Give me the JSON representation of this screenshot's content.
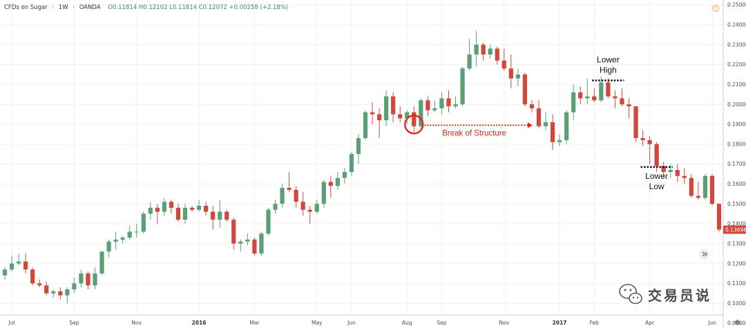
{
  "header": {
    "symbol": "CFDs on Sugar",
    "interval": "1W",
    "source": "OANDA",
    "ohlc": "O0.11814  H0.12102  L0.11814  C0.12072  +0.00258 (+2.18%)"
  },
  "price_tag": "0.13698",
  "watermark": "交易员说",
  "colors": {
    "up": "#5b9f77",
    "down": "#d0473c",
    "grid": "#eef0f3",
    "annotation": "#e3241b"
  },
  "icons": [
    "alert-icon",
    "gear-icon",
    "scroll-right-icon",
    "wechat-logo-icon"
  ],
  "chart_data": {
    "type": "candlestick",
    "title": "",
    "xlabel": "",
    "ylabel": "",
    "ylim": [
      0.09,
      0.25
    ],
    "y_ticks": [
      "0.25000",
      "0.24000",
      "0.23000",
      "0.22000",
      "0.21000",
      "0.20000",
      "0.19000",
      "0.18000",
      "0.17000",
      "0.16000",
      "0.15000",
      "0.14000",
      "0.13000",
      "0.12000",
      "0.11000",
      "0.10000",
      "0.09000"
    ],
    "x_ticks": [
      {
        "label": "Jul",
        "i": 1,
        "bold": false
      },
      {
        "label": "Sep",
        "i": 10,
        "bold": false
      },
      {
        "label": "Nov",
        "i": 19,
        "bold": false
      },
      {
        "label": "2016",
        "i": 28,
        "bold": true
      },
      {
        "label": "Mar",
        "i": 36,
        "bold": false
      },
      {
        "label": "May",
        "i": 45,
        "bold": false
      },
      {
        "label": "Jun",
        "i": 50,
        "bold": false
      },
      {
        "label": "Aug",
        "i": 58,
        "bold": false
      },
      {
        "label": "Sep",
        "i": 63,
        "bold": false
      },
      {
        "label": "Nov",
        "i": 72,
        "bold": false
      },
      {
        "label": "2017",
        "i": 80,
        "bold": true
      },
      {
        "label": "Feb",
        "i": 85,
        "bold": false
      },
      {
        "label": "Apr",
        "i": 93,
        "bold": false
      },
      {
        "label": "Jun",
        "i": 102,
        "bold": false
      }
    ],
    "candles": [
      {
        "o": 0.114,
        "h": 0.118,
        "l": 0.112,
        "c": 0.117
      },
      {
        "o": 0.117,
        "h": 0.124,
        "l": 0.116,
        "c": 0.12
      },
      {
        "o": 0.12,
        "h": 0.125,
        "l": 0.119,
        "c": 0.121
      },
      {
        "o": 0.121,
        "h": 0.125,
        "l": 0.115,
        "c": 0.117
      },
      {
        "o": 0.117,
        "h": 0.118,
        "l": 0.109,
        "c": 0.11
      },
      {
        "o": 0.11,
        "h": 0.112,
        "l": 0.108,
        "c": 0.109
      },
      {
        "o": 0.109,
        "h": 0.111,
        "l": 0.104,
        "c": 0.105
      },
      {
        "o": 0.105,
        "h": 0.107,
        "l": 0.103,
        "c": 0.106
      },
      {
        "o": 0.106,
        "h": 0.108,
        "l": 0.102,
        "c": 0.104
      },
      {
        "o": 0.104,
        "h": 0.108,
        "l": 0.1,
        "c": 0.107
      },
      {
        "o": 0.107,
        "h": 0.113,
        "l": 0.105,
        "c": 0.11
      },
      {
        "o": 0.11,
        "h": 0.117,
        "l": 0.108,
        "c": 0.115
      },
      {
        "o": 0.115,
        "h": 0.116,
        "l": 0.107,
        "c": 0.109
      },
      {
        "o": 0.109,
        "h": 0.118,
        "l": 0.107,
        "c": 0.115
      },
      {
        "o": 0.115,
        "h": 0.126,
        "l": 0.114,
        "c": 0.126
      },
      {
        "o": 0.126,
        "h": 0.132,
        "l": 0.123,
        "c": 0.131
      },
      {
        "o": 0.131,
        "h": 0.136,
        "l": 0.127,
        "c": 0.132
      },
      {
        "o": 0.132,
        "h": 0.134,
        "l": 0.13,
        "c": 0.133
      },
      {
        "o": 0.133,
        "h": 0.139,
        "l": 0.132,
        "c": 0.136
      },
      {
        "o": 0.136,
        "h": 0.14,
        "l": 0.133,
        "c": 0.136
      },
      {
        "o": 0.136,
        "h": 0.146,
        "l": 0.135,
        "c": 0.145
      },
      {
        "o": 0.145,
        "h": 0.151,
        "l": 0.142,
        "c": 0.148
      },
      {
        "o": 0.148,
        "h": 0.15,
        "l": 0.14,
        "c": 0.146
      },
      {
        "o": 0.146,
        "h": 0.153,
        "l": 0.144,
        "c": 0.151
      },
      {
        "o": 0.151,
        "h": 0.152,
        "l": 0.145,
        "c": 0.148
      },
      {
        "o": 0.148,
        "h": 0.15,
        "l": 0.141,
        "c": 0.142
      },
      {
        "o": 0.142,
        "h": 0.15,
        "l": 0.14,
        "c": 0.148
      },
      {
        "o": 0.148,
        "h": 0.149,
        "l": 0.146,
        "c": 0.147
      },
      {
        "o": 0.147,
        "h": 0.152,
        "l": 0.146,
        "c": 0.149
      },
      {
        "o": 0.149,
        "h": 0.151,
        "l": 0.144,
        "c": 0.146
      },
      {
        "o": 0.146,
        "h": 0.149,
        "l": 0.137,
        "c": 0.142
      },
      {
        "o": 0.142,
        "h": 0.152,
        "l": 0.138,
        "c": 0.146
      },
      {
        "o": 0.146,
        "h": 0.147,
        "l": 0.141,
        "c": 0.142
      },
      {
        "o": 0.142,
        "h": 0.143,
        "l": 0.127,
        "c": 0.13
      },
      {
        "o": 0.13,
        "h": 0.132,
        "l": 0.126,
        "c": 0.131
      },
      {
        "o": 0.131,
        "h": 0.135,
        "l": 0.129,
        "c": 0.132
      },
      {
        "o": 0.132,
        "h": 0.133,
        "l": 0.124,
        "c": 0.125
      },
      {
        "o": 0.125,
        "h": 0.136,
        "l": 0.124,
        "c": 0.135
      },
      {
        "o": 0.135,
        "h": 0.148,
        "l": 0.134,
        "c": 0.147
      },
      {
        "o": 0.147,
        "h": 0.152,
        "l": 0.145,
        "c": 0.15
      },
      {
        "o": 0.15,
        "h": 0.16,
        "l": 0.148,
        "c": 0.158
      },
      {
        "o": 0.158,
        "h": 0.166,
        "l": 0.156,
        "c": 0.157
      },
      {
        "o": 0.157,
        "h": 0.159,
        "l": 0.148,
        "c": 0.151
      },
      {
        "o": 0.151,
        "h": 0.156,
        "l": 0.144,
        "c": 0.147
      },
      {
        "o": 0.147,
        "h": 0.149,
        "l": 0.14,
        "c": 0.146
      },
      {
        "o": 0.146,
        "h": 0.152,
        "l": 0.145,
        "c": 0.15
      },
      {
        "o": 0.15,
        "h": 0.162,
        "l": 0.148,
        "c": 0.161
      },
      {
        "o": 0.161,
        "h": 0.164,
        "l": 0.153,
        "c": 0.159
      },
      {
        "o": 0.159,
        "h": 0.166,
        "l": 0.157,
        "c": 0.163
      },
      {
        "o": 0.163,
        "h": 0.168,
        "l": 0.16,
        "c": 0.166
      },
      {
        "o": 0.166,
        "h": 0.176,
        "l": 0.164,
        "c": 0.175
      },
      {
        "o": 0.175,
        "h": 0.185,
        "l": 0.17,
        "c": 0.183
      },
      {
        "o": 0.183,
        "h": 0.197,
        "l": 0.182,
        "c": 0.196
      },
      {
        "o": 0.196,
        "h": 0.201,
        "l": 0.19,
        "c": 0.195
      },
      {
        "o": 0.195,
        "h": 0.198,
        "l": 0.183,
        "c": 0.192
      },
      {
        "o": 0.192,
        "h": 0.207,
        "l": 0.189,
        "c": 0.204
      },
      {
        "o": 0.204,
        "h": 0.206,
        "l": 0.191,
        "c": 0.195
      },
      {
        "o": 0.195,
        "h": 0.199,
        "l": 0.191,
        "c": 0.193
      },
      {
        "o": 0.193,
        "h": 0.197,
        "l": 0.19,
        "c": 0.196
      },
      {
        "o": 0.196,
        "h": 0.199,
        "l": 0.186,
        "c": 0.189
      },
      {
        "o": 0.189,
        "h": 0.203,
        "l": 0.187,
        "c": 0.202
      },
      {
        "o": 0.202,
        "h": 0.204,
        "l": 0.194,
        "c": 0.197
      },
      {
        "o": 0.197,
        "h": 0.202,
        "l": 0.196,
        "c": 0.198
      },
      {
        "o": 0.198,
        "h": 0.206,
        "l": 0.195,
        "c": 0.203
      },
      {
        "o": 0.203,
        "h": 0.207,
        "l": 0.196,
        "c": 0.199
      },
      {
        "o": 0.199,
        "h": 0.204,
        "l": 0.198,
        "c": 0.2
      },
      {
        "o": 0.2,
        "h": 0.219,
        "l": 0.199,
        "c": 0.218
      },
      {
        "o": 0.218,
        "h": 0.233,
        "l": 0.217,
        "c": 0.225
      },
      {
        "o": 0.225,
        "h": 0.237,
        "l": 0.219,
        "c": 0.23
      },
      {
        "o": 0.23,
        "h": 0.231,
        "l": 0.222,
        "c": 0.225
      },
      {
        "o": 0.225,
        "h": 0.23,
        "l": 0.223,
        "c": 0.228
      },
      {
        "o": 0.228,
        "h": 0.229,
        "l": 0.22,
        "c": 0.222
      },
      {
        "o": 0.222,
        "h": 0.228,
        "l": 0.217,
        "c": 0.218
      },
      {
        "o": 0.218,
        "h": 0.225,
        "l": 0.208,
        "c": 0.213
      },
      {
        "o": 0.213,
        "h": 0.218,
        "l": 0.209,
        "c": 0.215
      },
      {
        "o": 0.215,
        "h": 0.216,
        "l": 0.199,
        "c": 0.2
      },
      {
        "o": 0.2,
        "h": 0.202,
        "l": 0.196,
        "c": 0.198
      },
      {
        "o": 0.198,
        "h": 0.202,
        "l": 0.188,
        "c": 0.189
      },
      {
        "o": 0.189,
        "h": 0.196,
        "l": 0.187,
        "c": 0.191
      },
      {
        "o": 0.191,
        "h": 0.195,
        "l": 0.177,
        "c": 0.181
      },
      {
        "o": 0.181,
        "h": 0.185,
        "l": 0.179,
        "c": 0.182
      },
      {
        "o": 0.182,
        "h": 0.197,
        "l": 0.18,
        "c": 0.196
      },
      {
        "o": 0.196,
        "h": 0.21,
        "l": 0.192,
        "c": 0.206
      },
      {
        "o": 0.206,
        "h": 0.209,
        "l": 0.2,
        "c": 0.203
      },
      {
        "o": 0.203,
        "h": 0.213,
        "l": 0.2,
        "c": 0.204
      },
      {
        "o": 0.204,
        "h": 0.208,
        "l": 0.201,
        "c": 0.202
      },
      {
        "o": 0.202,
        "h": 0.214,
        "l": 0.201,
        "c": 0.211
      },
      {
        "o": 0.211,
        "h": 0.213,
        "l": 0.203,
        "c": 0.204
      },
      {
        "o": 0.204,
        "h": 0.207,
        "l": 0.198,
        "c": 0.203
      },
      {
        "o": 0.203,
        "h": 0.208,
        "l": 0.199,
        "c": 0.2
      },
      {
        "o": 0.2,
        "h": 0.203,
        "l": 0.193,
        "c": 0.199
      },
      {
        "o": 0.199,
        "h": 0.199,
        "l": 0.181,
        "c": 0.183
      },
      {
        "o": 0.183,
        "h": 0.187,
        "l": 0.179,
        "c": 0.182
      },
      {
        "o": 0.182,
        "h": 0.184,
        "l": 0.17,
        "c": 0.18
      },
      {
        "o": 0.18,
        "h": 0.181,
        "l": 0.166,
        "c": 0.169
      },
      {
        "o": 0.169,
        "h": 0.171,
        "l": 0.163,
        "c": 0.166
      },
      {
        "o": 0.166,
        "h": 0.17,
        "l": 0.163,
        "c": 0.167
      },
      {
        "o": 0.167,
        "h": 0.17,
        "l": 0.161,
        "c": 0.164
      },
      {
        "o": 0.164,
        "h": 0.168,
        "l": 0.16,
        "c": 0.163
      },
      {
        "o": 0.163,
        "h": 0.165,
        "l": 0.153,
        "c": 0.154
      },
      {
        "o": 0.154,
        "h": 0.161,
        "l": 0.152,
        "c": 0.153
      },
      {
        "o": 0.153,
        "h": 0.165,
        "l": 0.152,
        "c": 0.164
      },
      {
        "o": 0.164,
        "h": 0.165,
        "l": 0.149,
        "c": 0.15
      },
      {
        "o": 0.15,
        "h": 0.15,
        "l": 0.136,
        "c": 0.137
      }
    ],
    "annotations": {
      "break_label": "Break of Structure",
      "lower_high_1": "Lower",
      "lower_high_2": "High",
      "lower_low_1": "Lower",
      "lower_low_2": "Low",
      "break_circle_candle": 59,
      "break_level": 0.1895,
      "break_end_candle": 76,
      "lower_high_level": 0.212,
      "lower_high_from": 85,
      "lower_high_to": 89,
      "lower_low_level": 0.1685,
      "lower_low_from": 92,
      "lower_low_to": 96
    }
  }
}
